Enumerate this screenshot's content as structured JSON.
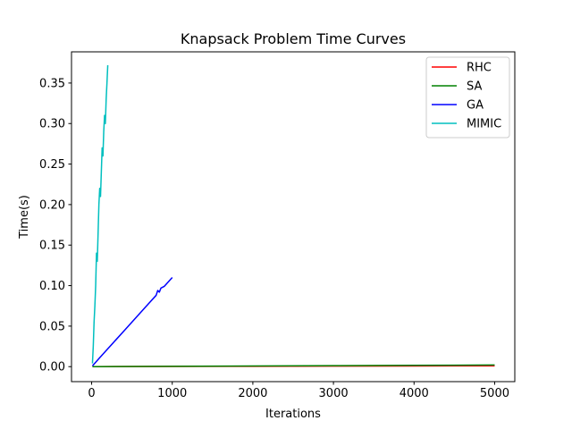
{
  "chart_data": {
    "type": "line",
    "title": "Knapsack Problem Time Curves",
    "xlabel": "Iterations",
    "ylabel": "Time(s)",
    "xlim": [
      -250,
      5250
    ],
    "ylim": [
      -0.0185,
      0.3885
    ],
    "xticks": [
      0,
      1000,
      2000,
      3000,
      4000,
      5000
    ],
    "yticks": [
      0.0,
      0.05,
      0.1,
      0.15,
      0.2,
      0.25,
      0.3,
      0.35
    ],
    "xtick_labels": [
      "0",
      "1000",
      "2000",
      "3000",
      "4000",
      "5000"
    ],
    "ytick_labels": [
      "0.00",
      "0.05",
      "0.10",
      "0.15",
      "0.20",
      "0.25",
      "0.30",
      "0.35"
    ],
    "grid": false,
    "legend_position": "top-right",
    "series": [
      {
        "name": "RHC",
        "color": "#ff0000",
        "x": [
          10,
          1000,
          2000,
          3000,
          4000,
          5000
        ],
        "y": [
          0.0,
          0.0002,
          0.0004,
          0.0006,
          0.0008,
          0.001
        ]
      },
      {
        "name": "SA",
        "color": "#008000",
        "x": [
          10,
          1000,
          2000,
          3000,
          4000,
          5000
        ],
        "y": [
          0.0,
          0.0004,
          0.0008,
          0.0012,
          0.0016,
          0.002
        ]
      },
      {
        "name": "GA",
        "color": "#0000ff",
        "x": [
          10,
          100,
          200,
          300,
          400,
          500,
          600,
          700,
          800,
          820,
          840,
          860,
          900,
          1000
        ],
        "y": [
          0.001,
          0.011,
          0.022,
          0.033,
          0.044,
          0.055,
          0.066,
          0.077,
          0.088,
          0.094,
          0.092,
          0.097,
          0.099,
          0.11
        ]
      },
      {
        "name": "MIMIC",
        "color": "#00bfbf",
        "x": [
          10,
          20,
          30,
          40,
          50,
          60,
          70,
          80,
          90,
          100,
          110,
          120,
          130,
          140,
          150,
          160,
          170,
          180,
          190,
          200
        ],
        "y": [
          0.004,
          0.025,
          0.055,
          0.075,
          0.1,
          0.14,
          0.13,
          0.165,
          0.2,
          0.22,
          0.21,
          0.24,
          0.27,
          0.26,
          0.29,
          0.31,
          0.3,
          0.33,
          0.35,
          0.372
        ]
      }
    ]
  }
}
